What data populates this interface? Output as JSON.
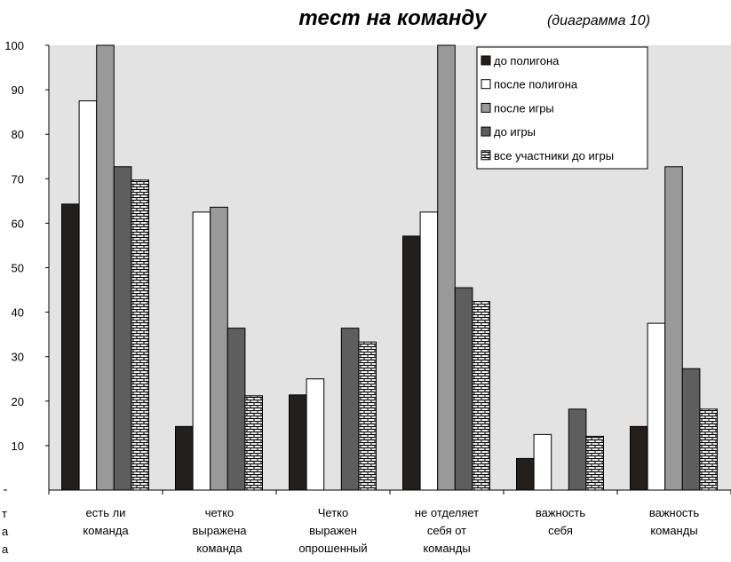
{
  "chart_data": {
    "type": "bar",
    "title": "тест на команду",
    "subtitle": "(диаграмма 10)",
    "ylabel_fragments": [
      "т",
      "а",
      "а"
    ],
    "ylim": [
      0,
      100
    ],
    "yticks": [
      10,
      20,
      30,
      40,
      50,
      60,
      70,
      80,
      90,
      100
    ],
    "grid": false,
    "legend_position": "top-right",
    "categories": [
      [
        "есть ли",
        "команда"
      ],
      [
        "четко",
        "выражена",
        "команда"
      ],
      [
        "Четко",
        "выражен",
        "опрошенный"
      ],
      [
        "не отделяет",
        "себя от",
        "команды"
      ],
      [
        "важность",
        "себя"
      ],
      [
        "важность",
        "команды"
      ]
    ],
    "series": [
      {
        "name": "до полигона",
        "color": "#231f1c",
        "pattern": "solid",
        "values": [
          64.3,
          14.3,
          21.4,
          57.1,
          7.1,
          14.3
        ]
      },
      {
        "name": "после полигона",
        "color": "#ffffff",
        "pattern": "solid",
        "values": [
          87.5,
          62.5,
          25.0,
          62.5,
          12.5,
          37.5
        ]
      },
      {
        "name": "после игры",
        "color": "#999999",
        "pattern": "solid",
        "values": [
          100,
          63.6,
          0,
          100,
          0,
          72.7
        ]
      },
      {
        "name": "до игры",
        "color": "#5e5e5e",
        "pattern": "solid",
        "values": [
          72.7,
          36.4,
          36.4,
          45.5,
          18.2,
          27.3
        ]
      },
      {
        "name": "все участники до игры",
        "color": "#ffffff",
        "pattern": "brick",
        "values": [
          69.7,
          21.2,
          33.3,
          42.4,
          12.1,
          18.2
        ]
      }
    ],
    "colors": {
      "plot_background": "#e3e3e3",
      "axis": "#000000"
    }
  }
}
